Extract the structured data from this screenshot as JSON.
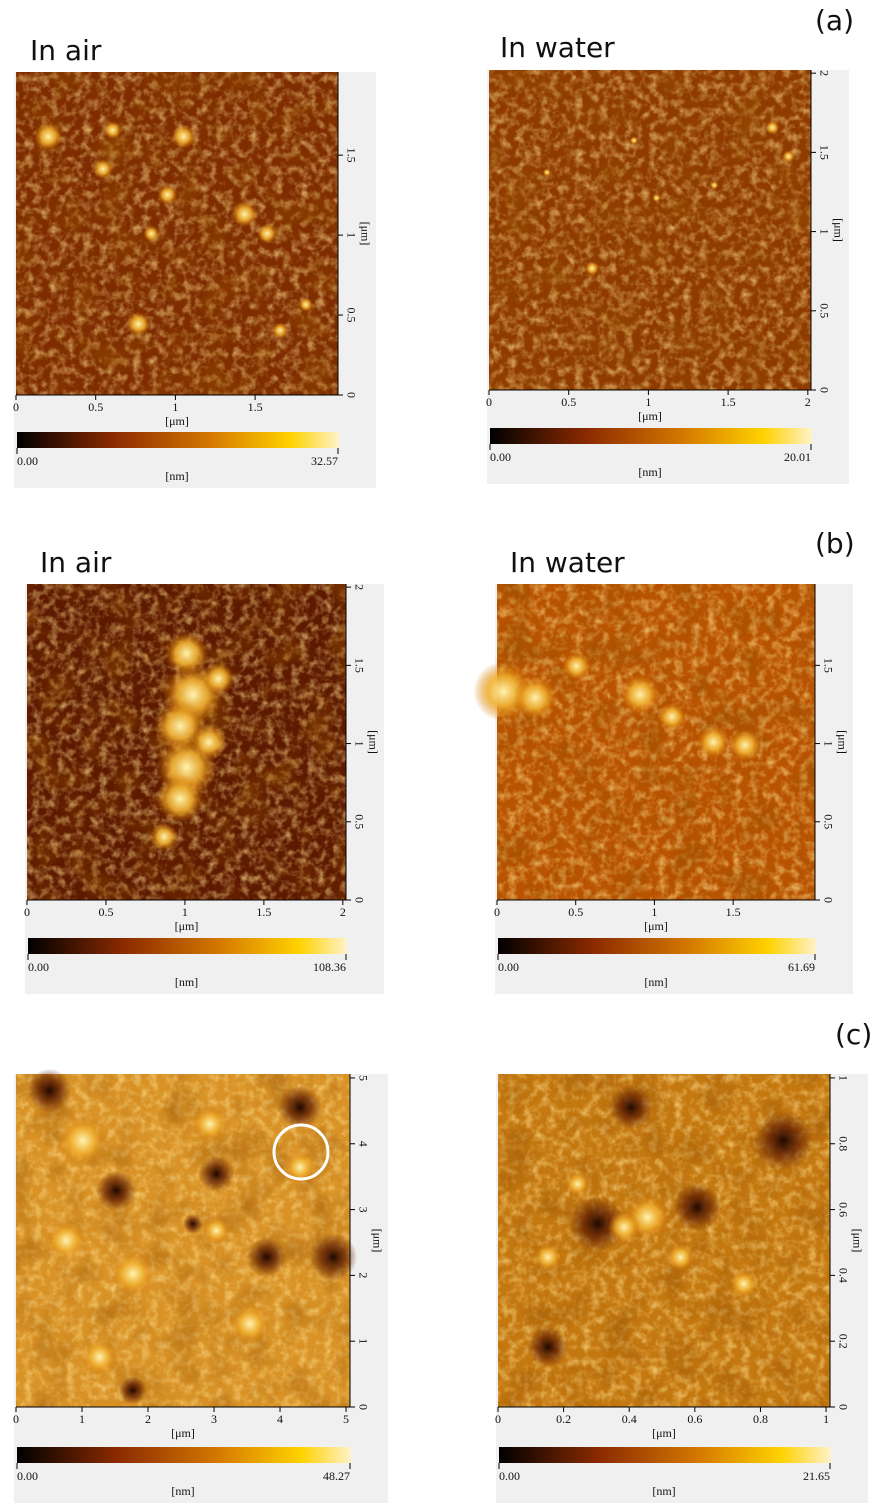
{
  "panels": [
    {
      "label": "(a)",
      "images": [
        {
          "title": "In air",
          "y_ticks": [
            "0",
            "0.5",
            "1",
            "1.5"
          ],
          "x_ticks": [
            "0",
            "0.5",
            "1",
            "1.5"
          ],
          "axis_unit": "[μm]",
          "colorbar_min": "0.00",
          "colorbar_max": "32.57",
          "colorbar_unit": "[nm]"
        },
        {
          "title": "In water",
          "y_ticks": [
            "0",
            "0.5",
            "1",
            "1.5",
            "2"
          ],
          "x_ticks": [
            "0",
            "0.5",
            "1",
            "1.5",
            "2"
          ],
          "axis_unit": "[μm]",
          "colorbar_min": "0.00",
          "colorbar_max": "20.01",
          "colorbar_unit": "[nm]"
        }
      ]
    },
    {
      "label": "(b)",
      "images": [
        {
          "title": "In air",
          "y_ticks": [
            "0",
            "0.5",
            "1",
            "1.5",
            "2"
          ],
          "x_ticks": [
            "0",
            "0.5",
            "1",
            "1.5",
            "2"
          ],
          "axis_unit": "[μm]",
          "colorbar_min": "0.00",
          "colorbar_max": "108.36",
          "colorbar_unit": "[nm]"
        },
        {
          "title": "In water",
          "y_ticks": [
            "0",
            "0.5",
            "1",
            "1.5"
          ],
          "x_ticks": [
            "0",
            "0.5",
            "1",
            "1.5"
          ],
          "axis_unit": "[μm]",
          "colorbar_min": "0.00",
          "colorbar_max": "61.69",
          "colorbar_unit": "[nm]"
        }
      ]
    },
    {
      "label": "(c)",
      "images": [
        {
          "y_ticks": [
            "0",
            "1",
            "2",
            "3",
            "4",
            "5"
          ],
          "x_ticks": [
            "0",
            "1",
            "2",
            "3",
            "4",
            "5"
          ],
          "axis_unit": "[μm]",
          "colorbar_min": "0.00",
          "colorbar_max": "48.27",
          "colorbar_unit": "[nm]"
        },
        {
          "y_ticks": [
            "0",
            "0.2",
            "0.4",
            "0.6",
            "0.8",
            "1"
          ],
          "x_ticks": [
            "0",
            "0.2",
            "0.4",
            "0.6",
            "0.8",
            "1"
          ],
          "axis_unit": "[μm]",
          "colorbar_min": "0.00",
          "colorbar_max": "21.65",
          "colorbar_unit": "[nm]"
        }
      ]
    }
  ]
}
